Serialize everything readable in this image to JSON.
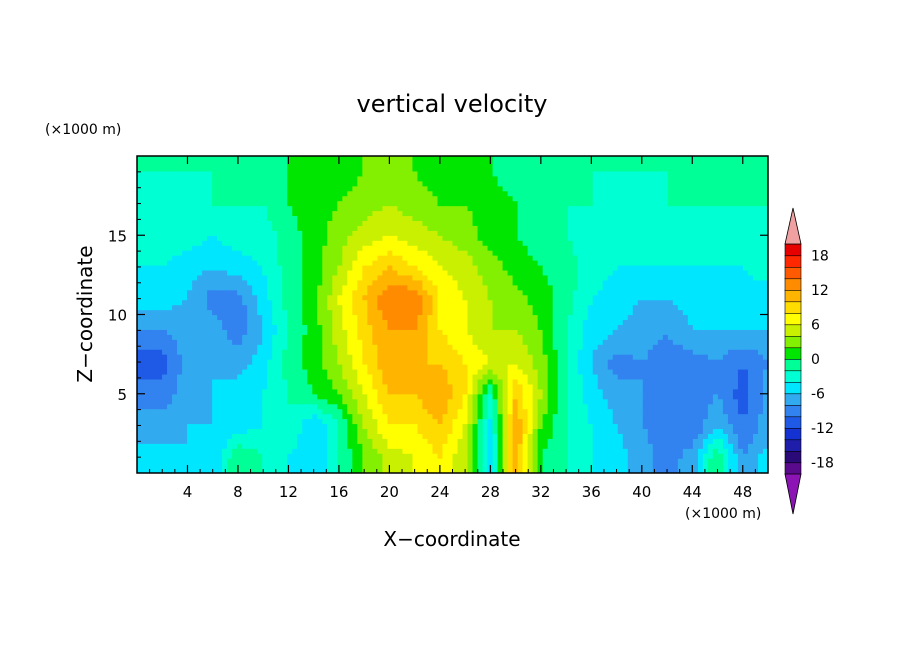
{
  "chart_data": {
    "type": "heatmap",
    "title": "vertical velocity",
    "xlabel": "X−coordinate",
    "ylabel": "Z−coordinate",
    "x_unit": "(×1000 m)",
    "y_unit": "(×1000 m)",
    "xlim": [
      0,
      50
    ],
    "ylim": [
      0,
      20
    ],
    "x_ticks": [
      4,
      8,
      12,
      16,
      20,
      24,
      28,
      32,
      36,
      40,
      44,
      48
    ],
    "y_ticks": [
      5,
      10,
      15
    ],
    "grid": false,
    "colorbar": {
      "placement": "right",
      "levels": [
        -20,
        -18,
        -16,
        -14,
        -12,
        -10,
        -8,
        -6,
        -4,
        -2,
        0,
        2,
        4,
        6,
        8,
        10,
        12,
        14,
        16,
        18,
        20
      ],
      "tick_labels": [
        18,
        12,
        6,
        0,
        -6,
        -12,
        -18
      ],
      "colors": [
        "#5a0a8c",
        "#2a0a78",
        "#1e1eaa",
        "#1432d2",
        "#1e5ae6",
        "#3282f0",
        "#32aaf0",
        "#00e6ff",
        "#00ffd2",
        "#00ff96",
        "#00e600",
        "#82f000",
        "#c8f000",
        "#ffff00",
        "#ffdc00",
        "#ffb400",
        "#ff8c00",
        "#ff5a00",
        "#ff2800",
        "#e60000"
      ],
      "under_color": "#8c14b4",
      "over_color": "#f0a0a0"
    },
    "x": [
      2,
      4,
      6,
      8,
      10,
      12,
      14,
      16,
      18,
      20,
      22,
      24,
      26,
      28,
      30,
      32,
      34,
      36,
      38,
      40,
      42,
      44,
      46,
      48,
      50
    ],
    "y": [
      1,
      3,
      5,
      7,
      9,
      11,
      13,
      15,
      17,
      19
    ],
    "z": [
      [
        -5,
        -6,
        -6,
        0,
        -2,
        -4,
        -6,
        -2,
        2,
        5,
        6,
        8,
        4,
        -6,
        12,
        0,
        -2,
        -4,
        -5,
        -7,
        -9,
        -7,
        0,
        -8,
        -5
      ],
      [
        -7,
        -6,
        -6,
        -5,
        -4,
        -2,
        -6,
        -2,
        4,
        8,
        8,
        10,
        6,
        -5,
        12,
        2,
        -2,
        -4,
        -6,
        -8,
        -9,
        -10,
        -6,
        -10,
        -7
      ],
      [
        -9,
        -7,
        -6,
        -5,
        -4,
        -2,
        0,
        2,
        6,
        10,
        10,
        12,
        8,
        -2,
        10,
        4,
        -2,
        -5,
        -7,
        -8,
        -8,
        -9,
        -8,
        -11,
        -7
      ],
      [
        -11,
        -7,
        -6,
        -7,
        -5,
        -1,
        1,
        4,
        8,
        12,
        10,
        10,
        8,
        6,
        6,
        3,
        -2,
        -6,
        -9,
        -8,
        -9,
        -9,
        -8,
        -10,
        -8
      ],
      [
        -8,
        -7,
        -7,
        -9,
        -6,
        -2,
        1,
        5,
        9,
        12,
        12,
        8,
        6,
        4,
        4,
        2,
        -2,
        -5,
        -6,
        -7,
        -8,
        -6,
        -6,
        -6,
        -6
      ],
      [
        -5,
        -6,
        -9,
        -9,
        -5,
        -1,
        1,
        6,
        10,
        14,
        14,
        8,
        6,
        4,
        3,
        1,
        -1,
        -4,
        -5,
        -6,
        -6,
        -5,
        -5,
        -5,
        -5
      ],
      [
        -4,
        -5,
        -6,
        -5,
        -4,
        -1,
        1,
        4,
        8,
        10,
        8,
        6,
        5,
        3,
        1,
        0,
        -1,
        -3,
        -4,
        -4,
        -4,
        -4,
        -4,
        -4,
        -3
      ],
      [
        -3,
        -3,
        -4,
        -3,
        -3,
        -1,
        1,
        3,
        5,
        6,
        5,
        4,
        3,
        1,
        0,
        -1,
        -2,
        -3,
        -3,
        -3,
        -3,
        -3,
        -3,
        -3,
        -3
      ],
      [
        -3,
        -3,
        -2,
        -2,
        -2,
        0,
        1,
        2,
        3,
        4,
        3,
        2,
        2,
        1,
        0,
        -2,
        -2,
        -2,
        -3,
        -3,
        -2,
        -2,
        -2,
        -2,
        -2
      ],
      [
        -2,
        -2,
        -2,
        -2,
        -2,
        0,
        0,
        1,
        2,
        2,
        2,
        1,
        1,
        0,
        -1,
        -2,
        -2,
        -2,
        -2,
        -2,
        -2,
        -2,
        -2,
        -2,
        -2
      ]
    ]
  }
}
